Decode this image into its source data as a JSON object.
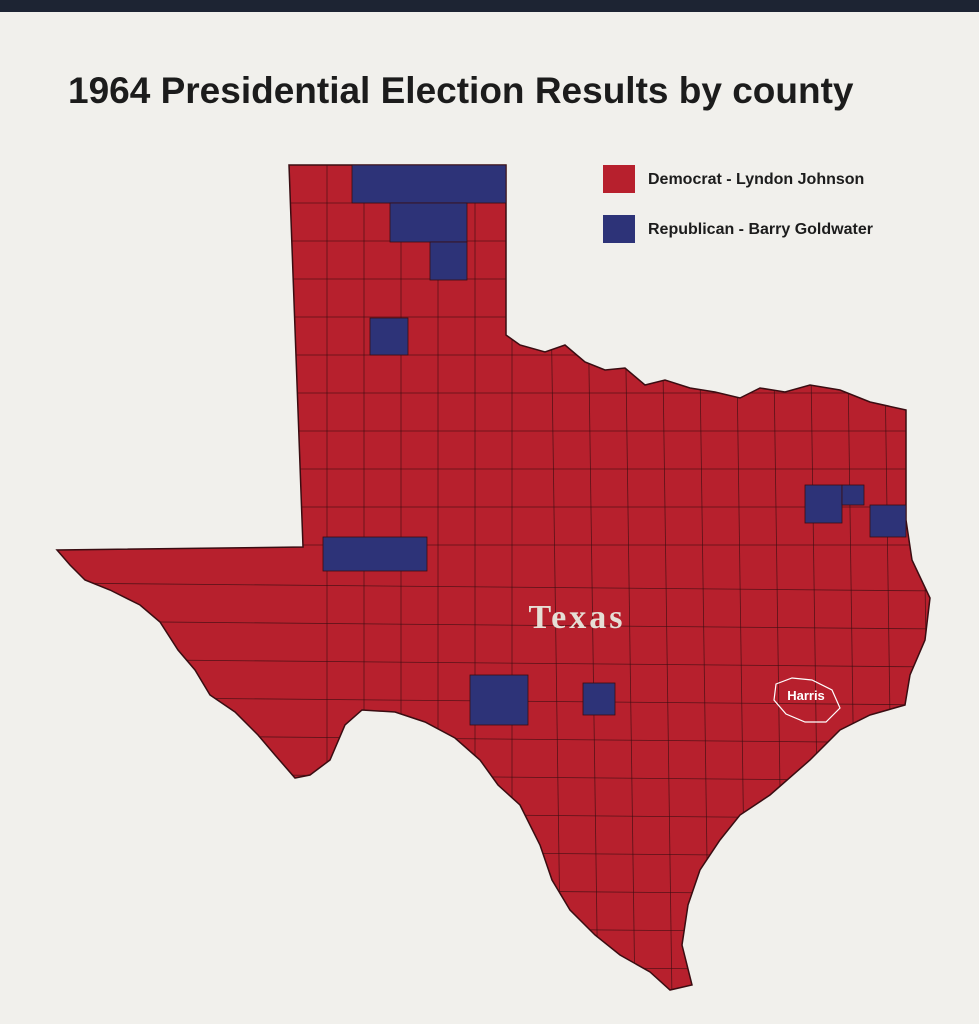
{
  "title": "1964 Presidential Election Results by county",
  "legend": [
    {
      "label": "Democrat - Lyndon Johnson",
      "color": "#b7202d"
    },
    {
      "label": "Republican - Barry Goldwater",
      "color": "#2d3378"
    }
  ],
  "map": {
    "state_label": "Texas",
    "county_label": "Harris"
  }
}
